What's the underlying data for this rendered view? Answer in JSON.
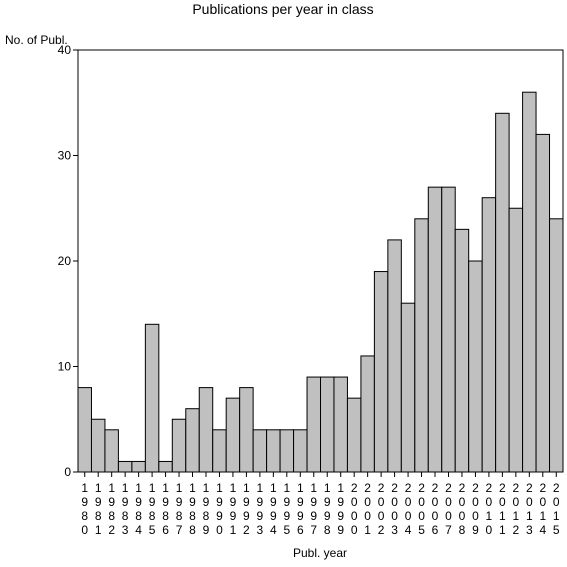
{
  "chart_data": {
    "type": "bar",
    "title": "Publications per year in class",
    "xlabel": "Publ. year",
    "ylabel": "No. of Publ.",
    "ylim": [
      0,
      40
    ],
    "yticks": [
      0,
      10,
      20,
      30,
      40
    ],
    "grid": false,
    "categories": [
      "1980",
      "1981",
      "1982",
      "1983",
      "1984",
      "1985",
      "1986",
      "1987",
      "1988",
      "1989",
      "1990",
      "1991",
      "1992",
      "1993",
      "1994",
      "1995",
      "1996",
      "1997",
      "1998",
      "1999",
      "2000",
      "2001",
      "2002",
      "2003",
      "2004",
      "2005",
      "2006",
      "2007",
      "2008",
      "2009",
      "2010",
      "2011",
      "2012",
      "2013",
      "2014",
      "2015"
    ],
    "values": [
      8,
      5,
      4,
      1,
      1,
      14,
      1,
      5,
      6,
      8,
      4,
      7,
      8,
      4,
      4,
      4,
      4,
      9,
      9,
      9,
      7,
      11,
      19,
      22,
      16,
      24,
      27,
      27,
      23,
      20,
      26,
      34,
      25,
      36,
      32,
      24
    ],
    "colors": {
      "bar_fill": "#c0c0c0",
      "bar_stroke": "#000000"
    }
  }
}
